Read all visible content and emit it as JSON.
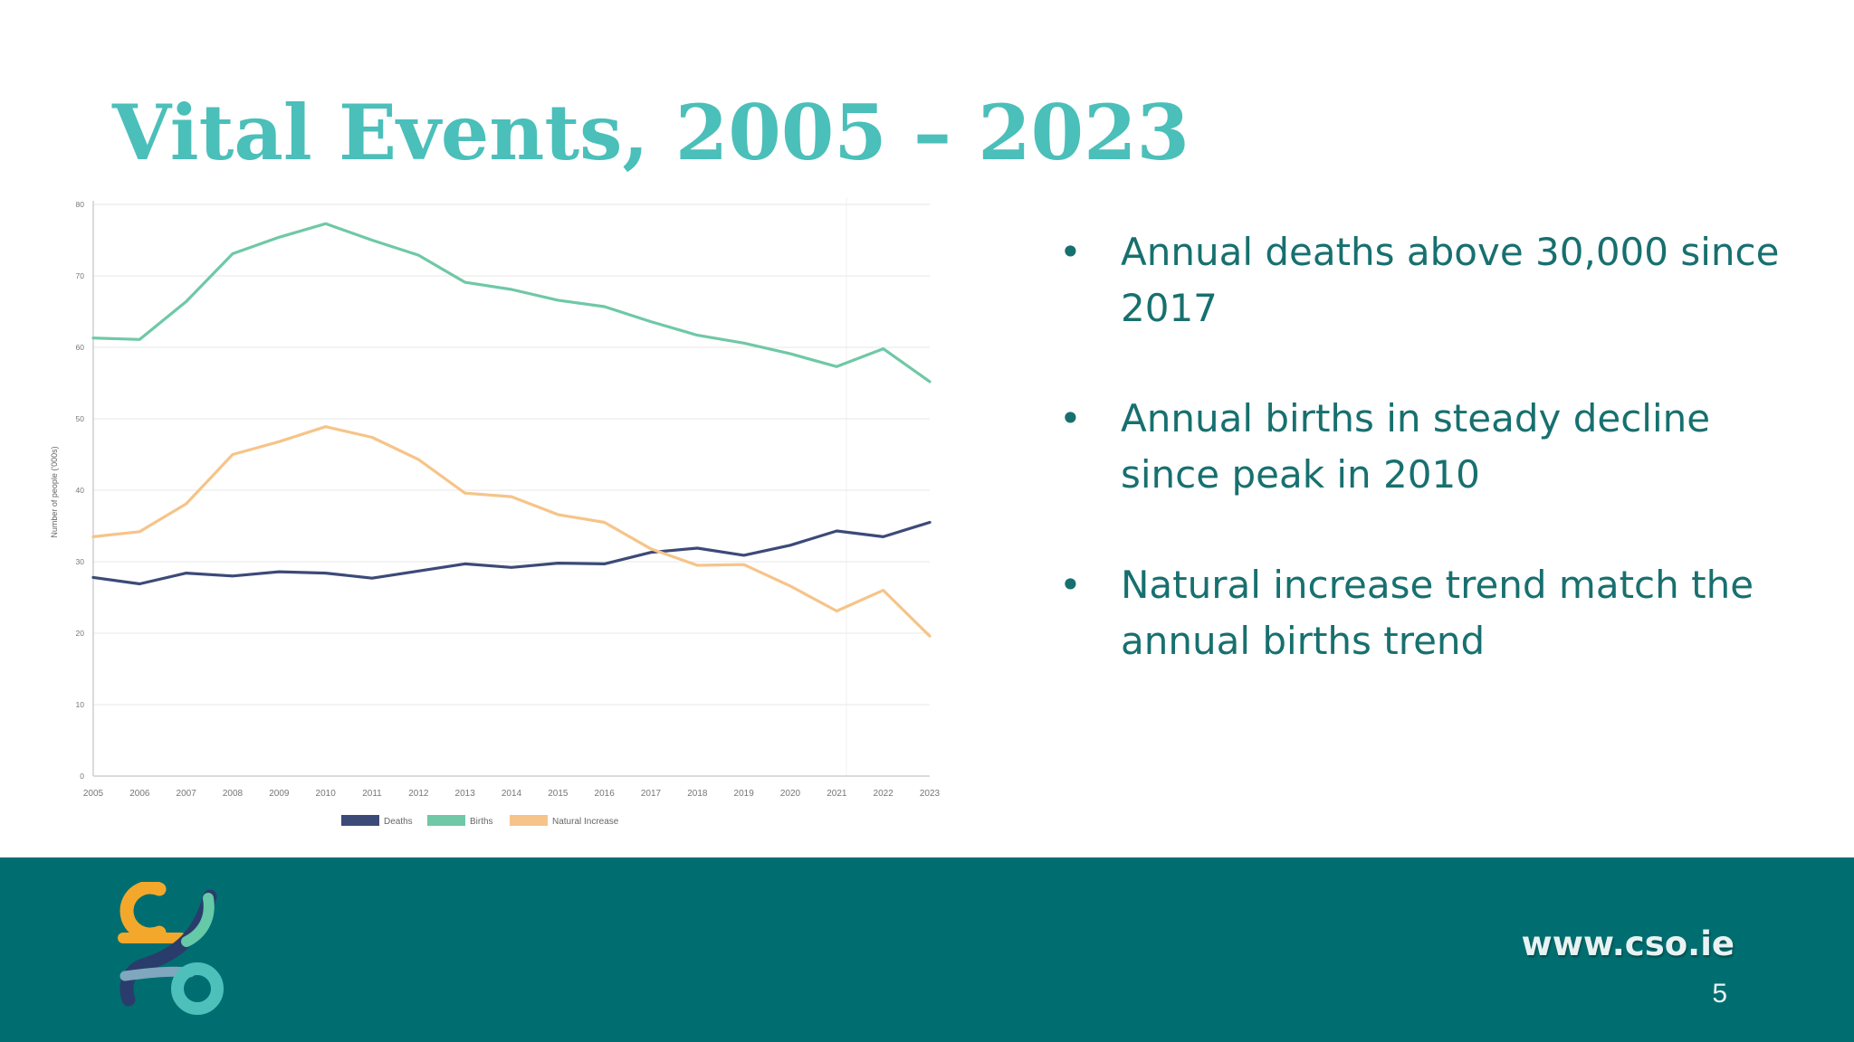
{
  "slide": {
    "title": "Vital Events, 2005 – 2023",
    "bullets": [
      "Annual deaths above 30,000 since 2017",
      "Annual births in steady decline since peak in 2010",
      "Natural increase trend match the annual births trend"
    ],
    "bullet_symbol": "•",
    "website": "www.cso.ie",
    "page_number": "5"
  },
  "colors": {
    "title": "#4bbfb9",
    "bullet_text": "#17706f",
    "footer": "#006e70",
    "deaths": "#3c4a78",
    "births": "#6fc8a6",
    "natural_increase": "#f6c489"
  },
  "chart_data": {
    "type": "line",
    "title": "",
    "xlabel": "",
    "ylabel": "Number of people ('000s)",
    "ylim": [
      0,
      80
    ],
    "y_ticks": [
      0,
      10,
      20,
      30,
      40,
      50,
      60,
      70,
      80
    ],
    "x": [
      "2005",
      "2006",
      "2007",
      "2008",
      "2009",
      "2010",
      "2011",
      "2012",
      "2013",
      "2014",
      "2015",
      "2016",
      "2017",
      "2018",
      "2019",
      "2020",
      "2021",
      "2022",
      "2023"
    ],
    "grid": true,
    "legend": "bottom-center",
    "series": [
      {
        "name": "Deaths",
        "color": "#3c4a78",
        "values": [
          27.8,
          26.9,
          28.4,
          28.0,
          28.6,
          28.4,
          27.7,
          28.7,
          29.7,
          29.2,
          29.8,
          29.7,
          31.3,
          31.9,
          30.9,
          32.3,
          34.3,
          33.5,
          35.5
        ]
      },
      {
        "name": "Births",
        "color": "#6fc8a6",
        "values": [
          61.3,
          61.1,
          66.4,
          73.1,
          75.4,
          77.3,
          75.0,
          72.9,
          69.1,
          68.1,
          66.6,
          65.7,
          63.6,
          61.7,
          60.6,
          59.1,
          57.3,
          59.8,
          55.2
        ]
      },
      {
        "name": "Natural Increase",
        "color": "#f6c489",
        "values": [
          33.5,
          34.2,
          38.1,
          45.0,
          46.8,
          48.9,
          47.4,
          44.3,
          39.6,
          39.1,
          36.6,
          35.5,
          31.8,
          29.5,
          29.6,
          26.6,
          23.1,
          26.0,
          19.6
        ]
      }
    ]
  }
}
